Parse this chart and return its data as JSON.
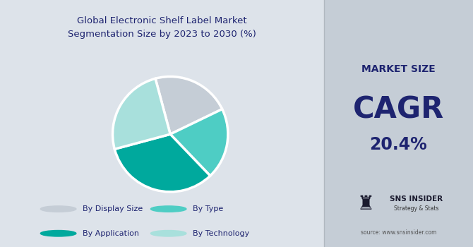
{
  "title": "Global Electronic Shelf Label Market\nSegmentation Size by 2023 to 2030 (%)",
  "title_fontsize": 9.5,
  "pie_values": [
    22,
    20,
    33,
    25
  ],
  "pie_colors": [
    "#c5cdd6",
    "#4ecdc4",
    "#00a99d",
    "#a8e0dc"
  ],
  "pie_labels": [
    "By Display Size",
    "By Type",
    "By Application",
    "By Technology"
  ],
  "legend_colors": [
    "#c5cdd6",
    "#4ecdc4",
    "#00a99d",
    "#a8e0dc"
  ],
  "left_bg": "#dde3ea",
  "right_bg": "#c5cdd6",
  "market_size_label": "MARKET SIZE",
  "cagr_label": "CAGR",
  "cagr_value": "20.4%",
  "dark_navy": "#1e2470",
  "source_text": "source: www.snsinsider.com",
  "sns_label": "SNS INSIDER",
  "sns_sub": "Strategy & Stats",
  "title_color": "#1e2470"
}
